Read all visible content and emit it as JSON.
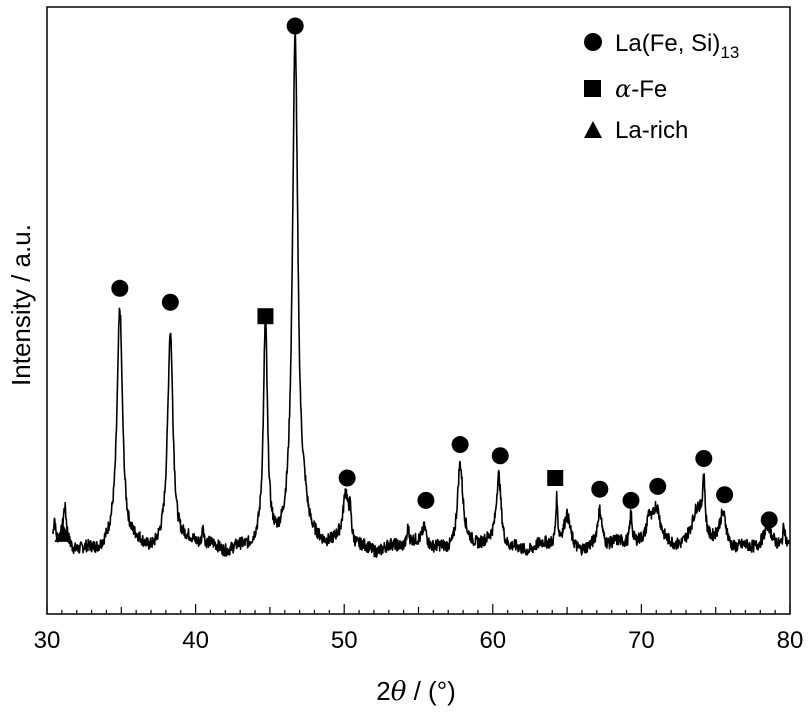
{
  "chart_data": {
    "type": "line",
    "xlabel_prefix": "2",
    "xlabel_symbol": "θ",
    "xlabel_suffix": " / (°)",
    "ylabel": "Intensity / a.u.",
    "xlim": [
      30,
      80
    ],
    "ylim": [
      0,
      100
    ],
    "x_ticks": [
      30,
      40,
      50,
      60,
      70,
      80
    ],
    "y_ticks_shown": false,
    "grid": false,
    "legend_position": "top-right",
    "legend": [
      {
        "marker": "circle",
        "label_main": "La(Fe, Si)",
        "label_sub": "13"
      },
      {
        "marker": "square",
        "label_main": "-Fe",
        "label_greek": "α"
      },
      {
        "marker": "triangle",
        "label_main": "La-rich"
      }
    ],
    "baseline": 9,
    "peaks": [
      {
        "x": 30.5,
        "h": 4.5,
        "w": 0.08
      },
      {
        "x": 31.2,
        "h": 6.5,
        "w": 0.15
      },
      {
        "x": 34.9,
        "h": 42,
        "w": 0.22
      },
      {
        "x": 38.3,
        "h": 39,
        "w": 0.22
      },
      {
        "x": 40.5,
        "h": 3.5,
        "w": 0.07
      },
      {
        "x": 44.7,
        "h": 39,
        "w": 0.16
      },
      {
        "x": 46.7,
        "h": 91,
        "w": 0.22
      },
      {
        "x": 47.3,
        "h": 5,
        "w": 0.3
      },
      {
        "x": 50.1,
        "h": 9,
        "w": 0.2
      },
      {
        "x": 50.4,
        "h": 5,
        "w": 0.1
      },
      {
        "x": 54.3,
        "h": 3,
        "w": 0.07
      },
      {
        "x": 55.4,
        "h": 3.5,
        "w": 0.2
      },
      {
        "x": 57.8,
        "h": 15,
        "w": 0.22
      },
      {
        "x": 60.4,
        "h": 13,
        "w": 0.2
      },
      {
        "x": 64.3,
        "h": 8,
        "w": 0.08
      },
      {
        "x": 65.0,
        "h": 5,
        "w": 0.25
      },
      {
        "x": 67.2,
        "h": 7,
        "w": 0.2
      },
      {
        "x": 69.3,
        "h": 5.5,
        "w": 0.1
      },
      {
        "x": 70.5,
        "h": 4,
        "w": 0.15
      },
      {
        "x": 71.0,
        "h": 8,
        "w": 0.35
      },
      {
        "x": 73.8,
        "h": 6,
        "w": 0.4
      },
      {
        "x": 74.2,
        "h": 10,
        "w": 0.1
      },
      {
        "x": 75.5,
        "h": 6,
        "w": 0.3
      },
      {
        "x": 78.5,
        "h": 3,
        "w": 0.25
      },
      {
        "x": 79.6,
        "h": 4,
        "w": 0.1
      }
    ],
    "markers": [
      {
        "phase": "La-rich",
        "shape": "triangle",
        "x": 31.1,
        "y": 11.5
      },
      {
        "phase": "La(Fe, Si)13",
        "shape": "circle",
        "x": 34.9,
        "y": 55.5
      },
      {
        "phase": "La(Fe, Si)13",
        "shape": "circle",
        "x": 38.3,
        "y": 53
      },
      {
        "phase": "α-Fe",
        "shape": "square",
        "x": 44.7,
        "y": 50.5
      },
      {
        "phase": "La(Fe, Si)13",
        "shape": "circle",
        "x": 46.7,
        "y": 102.5
      },
      {
        "phase": "La(Fe, Si)13",
        "shape": "circle",
        "x": 50.2,
        "y": 21.5
      },
      {
        "phase": "La(Fe, Si)13",
        "shape": "circle",
        "x": 55.5,
        "y": 17.5
      },
      {
        "phase": "La(Fe, Si)13",
        "shape": "circle",
        "x": 57.8,
        "y": 27.5
      },
      {
        "phase": "La(Fe, Si)13",
        "shape": "circle",
        "x": 60.5,
        "y": 25.5
      },
      {
        "phase": "α-Fe",
        "shape": "square",
        "x": 64.2,
        "y": 21.5
      },
      {
        "phase": "La(Fe, Si)13",
        "shape": "circle",
        "x": 67.2,
        "y": 19.5
      },
      {
        "phase": "La(Fe, Si)13",
        "shape": "circle",
        "x": 69.3,
        "y": 17.5
      },
      {
        "phase": "La(Fe, Si)13",
        "shape": "circle",
        "x": 71.1,
        "y": 20
      },
      {
        "phase": "La(Fe, Si)13",
        "shape": "circle",
        "x": 74.2,
        "y": 25
      },
      {
        "phase": "La(Fe, Si)13",
        "shape": "circle",
        "x": 75.6,
        "y": 18.5
      },
      {
        "phase": "La(Fe, Si)13",
        "shape": "circle",
        "x": 78.6,
        "y": 14
      }
    ]
  }
}
